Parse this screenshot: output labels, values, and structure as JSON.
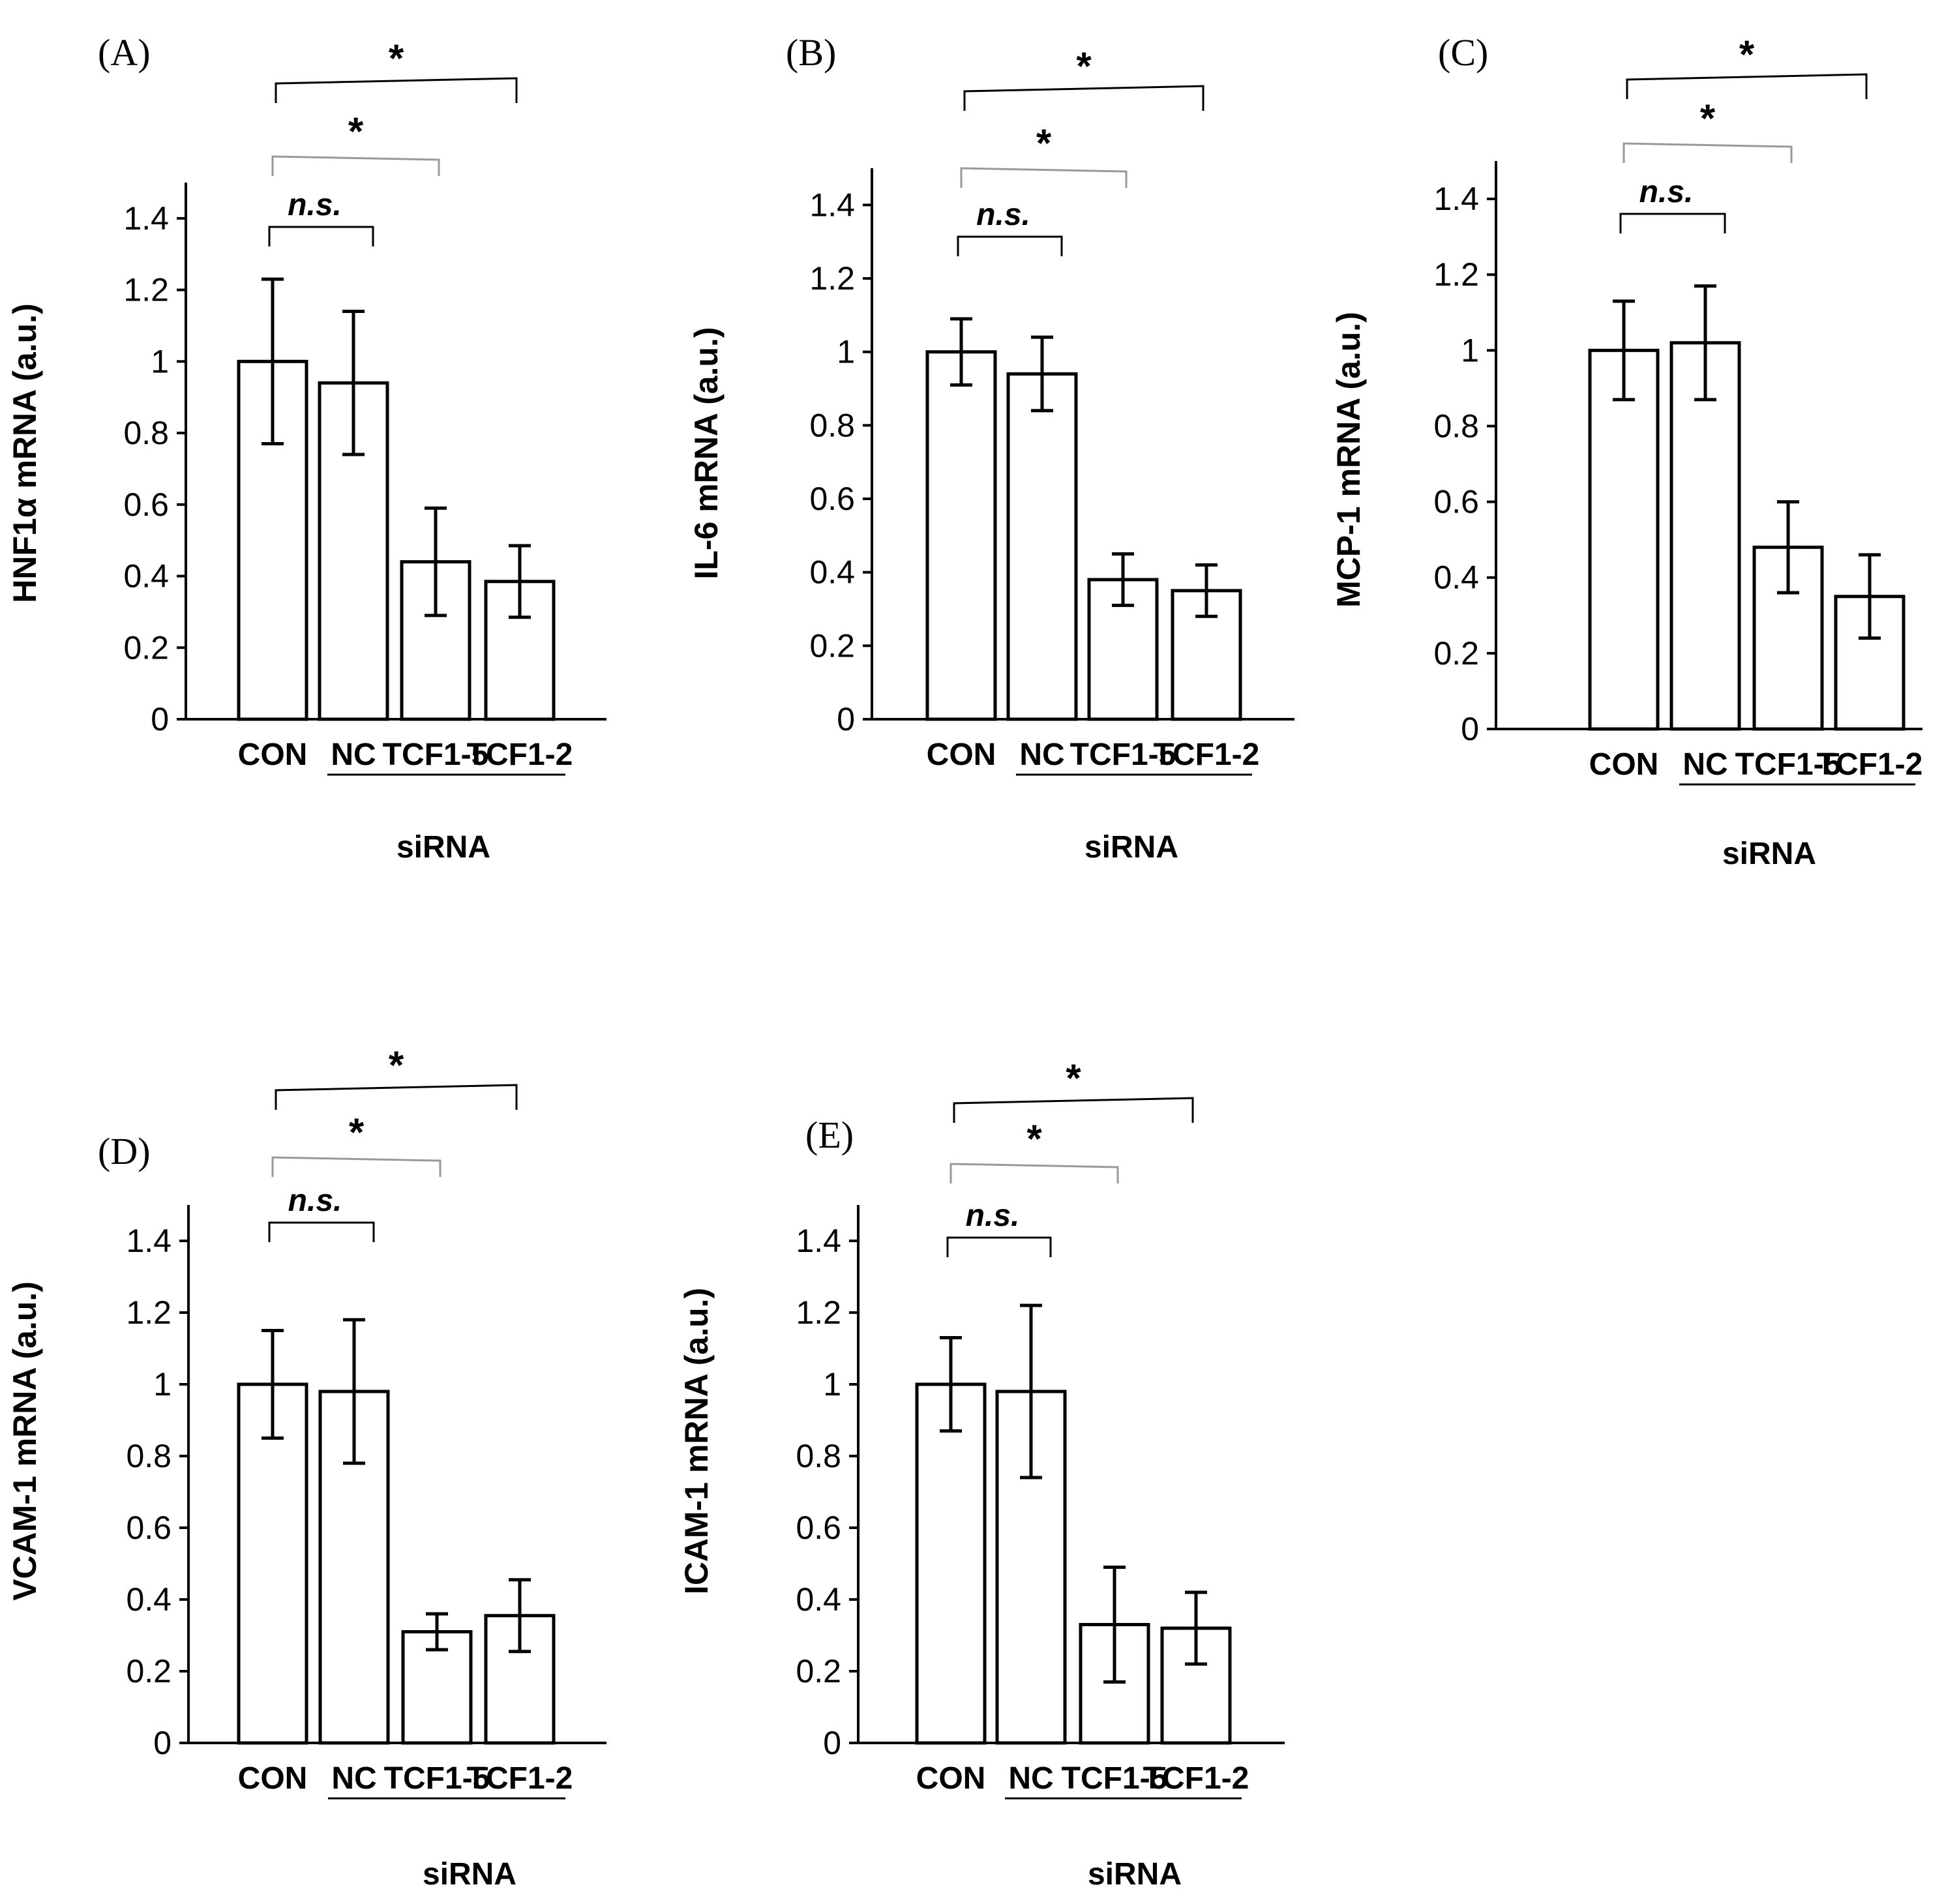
{
  "figure": {
    "shared": {
      "xlabel": "siRNA",
      "categories": [
        "CON",
        "NC",
        "TCF1-5",
        "TCF1-2"
      ],
      "underlined_group": [
        "NC",
        "TCF1-5",
        "TCF1-2"
      ],
      "yticks": [
        "0",
        "0.2",
        "0.4",
        "0.6",
        "0.8",
        "1",
        "1.2",
        "1.4"
      ],
      "ylim": [
        0,
        1.5
      ],
      "colors": {
        "bar_fill": "#ffffff",
        "bar_stroke": "#000000",
        "bracket_gray": "#999999"
      }
    }
  },
  "chart_data": [
    {
      "type": "bar",
      "panel": "(A)",
      "title": "",
      "ylabel": "HNF1α mRNA  (a.u.)",
      "xlabel": "siRNA",
      "categories": [
        "CON",
        "NC",
        "TCF1-5",
        "TCF1-2"
      ],
      "values": [
        1.0,
        0.94,
        0.44,
        0.385
      ],
      "errors": [
        0.23,
        0.2,
        0.15,
        0.1
      ],
      "ylim": [
        0,
        1.5
      ],
      "yticks": [
        0,
        0.2,
        0.4,
        0.6,
        0.8,
        1,
        1.2,
        1.4
      ],
      "significance": [
        {
          "from": "CON",
          "to": "NC",
          "label": "n.s."
        },
        {
          "from": "CON",
          "to": "TCF1-5",
          "label": "*"
        },
        {
          "from": "CON",
          "to": "TCF1-2",
          "label": "*"
        }
      ]
    },
    {
      "type": "bar",
      "panel": "(B)",
      "title": "",
      "ylabel": "IL-6 mRNA (a.u.)",
      "xlabel": "siRNA",
      "categories": [
        "CON",
        "NC",
        "TCF1-5",
        "TCF1-2"
      ],
      "values": [
        1.0,
        0.94,
        0.38,
        0.35
      ],
      "errors": [
        0.09,
        0.1,
        0.07,
        0.07
      ],
      "ylim": [
        0,
        1.5
      ],
      "yticks": [
        0,
        0.2,
        0.4,
        0.6,
        0.8,
        1,
        1.2,
        1.4
      ],
      "significance": [
        {
          "from": "CON",
          "to": "NC",
          "label": "n.s."
        },
        {
          "from": "CON",
          "to": "TCF1-5",
          "label": "*"
        },
        {
          "from": "CON",
          "to": "TCF1-2",
          "label": "*"
        }
      ]
    },
    {
      "type": "bar",
      "panel": "(C)",
      "title": "",
      "ylabel": "MCP-1 mRNA (a.u.)",
      "xlabel": "siRNA",
      "categories": [
        "CON",
        "NC",
        "TCF1-5",
        "TCF1-2"
      ],
      "values": [
        1.0,
        1.02,
        0.48,
        0.35
      ],
      "errors": [
        0.13,
        0.15,
        0.12,
        0.11
      ],
      "ylim": [
        0,
        1.5
      ],
      "yticks": [
        0,
        0.2,
        0.4,
        0.6,
        0.8,
        1,
        1.2,
        1.4
      ],
      "significance": [
        {
          "from": "CON",
          "to": "NC",
          "label": "n.s."
        },
        {
          "from": "CON",
          "to": "TCF1-5",
          "label": "*"
        },
        {
          "from": "CON",
          "to": "TCF1-2",
          "label": "*"
        }
      ]
    },
    {
      "type": "bar",
      "panel": "(D)",
      "title": "",
      "ylabel": "VCAM-1 mRNA (a.u.)",
      "xlabel": "siRNA",
      "categories": [
        "CON",
        "NC",
        "TCF1-5",
        "TCF1-2"
      ],
      "values": [
        1.0,
        0.98,
        0.31,
        0.355
      ],
      "errors": [
        0.15,
        0.2,
        0.05,
        0.1
      ],
      "ylim": [
        0,
        1.5
      ],
      "yticks": [
        0,
        0.2,
        0.4,
        0.6,
        0.8,
        1,
        1.2,
        1.4
      ],
      "significance": [
        {
          "from": "CON",
          "to": "NC",
          "label": "n.s."
        },
        {
          "from": "CON",
          "to": "TCF1-5",
          "label": "*"
        },
        {
          "from": "CON",
          "to": "TCF1-2",
          "label": "*"
        }
      ]
    },
    {
      "type": "bar",
      "panel": "(E)",
      "title": "",
      "ylabel": "ICAM-1 mRNA (a.u.)",
      "xlabel": "siRNA",
      "categories": [
        "CON",
        "NC",
        "TCF1-5",
        "TCF1-2"
      ],
      "values": [
        1.0,
        0.98,
        0.33,
        0.32
      ],
      "errors": [
        0.13,
        0.24,
        0.16,
        0.1
      ],
      "ylim": [
        0,
        1.5
      ],
      "yticks": [
        0,
        0.2,
        0.4,
        0.6,
        0.8,
        1,
        1.2,
        1.4
      ],
      "significance": [
        {
          "from": "CON",
          "to": "NC",
          "label": "n.s."
        },
        {
          "from": "CON",
          "to": "TCF1-5",
          "label": "*"
        },
        {
          "from": "CON",
          "to": "TCF1-2",
          "label": "*"
        }
      ]
    }
  ]
}
